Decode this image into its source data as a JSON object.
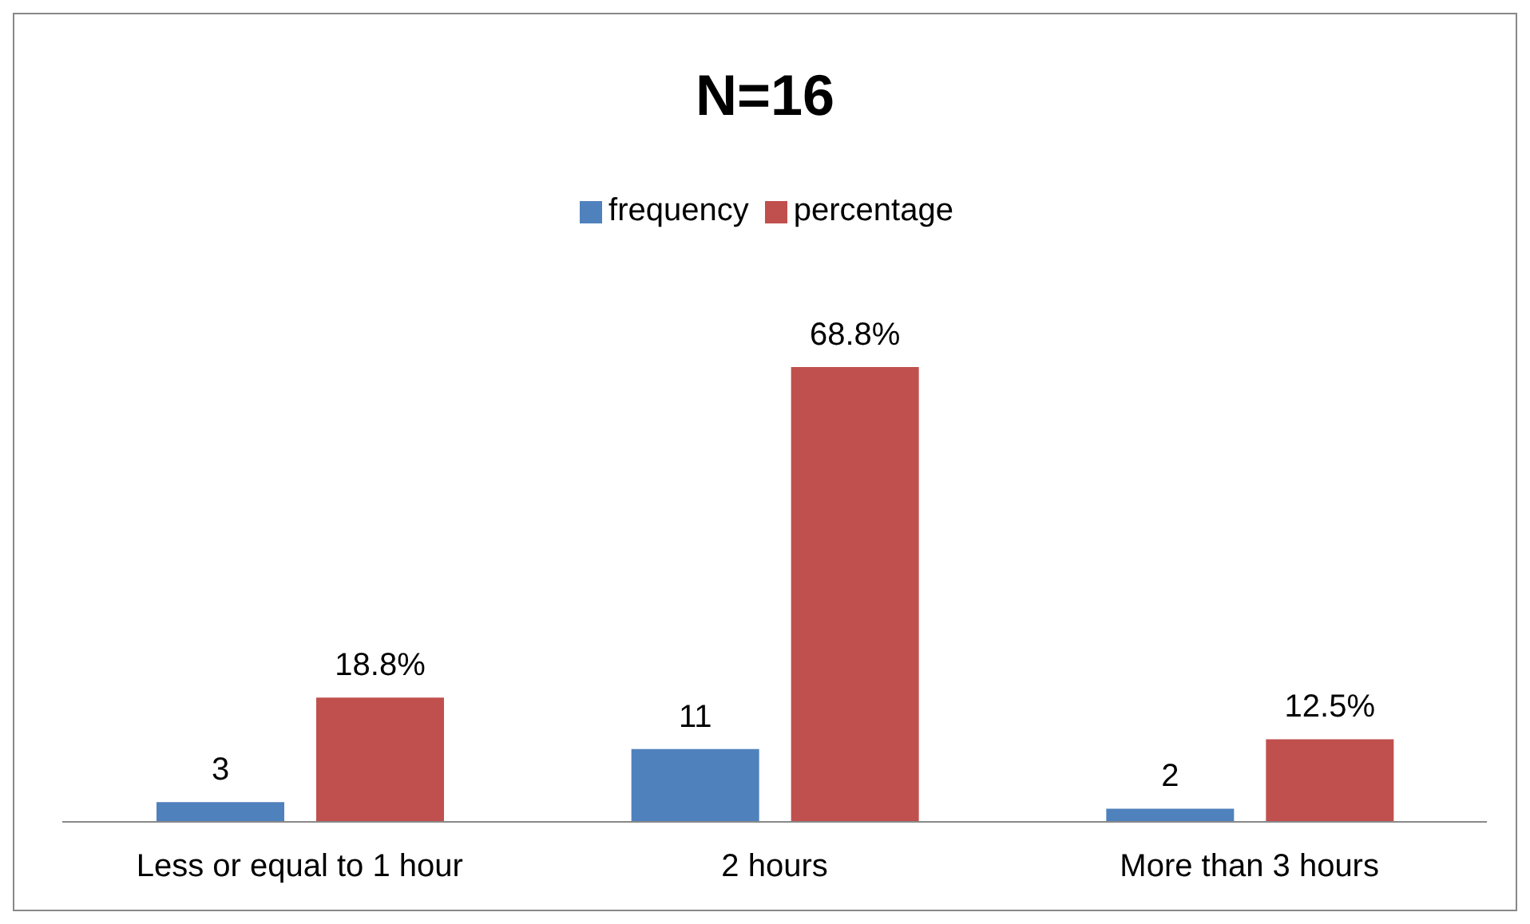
{
  "chart_data": {
    "type": "bar",
    "title": "N=16",
    "categories": [
      "Less or equal to 1 hour",
      "2 hours",
      "More than 3 hours"
    ],
    "series": [
      {
        "name": "frequency",
        "color": "#4f81bd",
        "values": [
          3,
          11,
          2
        ],
        "value_labels": [
          "3",
          "11",
          "2"
        ]
      },
      {
        "name": "percentage",
        "color": "#c0504d",
        "values": [
          18.8,
          68.8,
          12.5
        ],
        "value_labels": [
          "18.8%",
          "68.8%",
          "12.5%"
        ]
      }
    ],
    "legend": "top",
    "grid": false
  }
}
